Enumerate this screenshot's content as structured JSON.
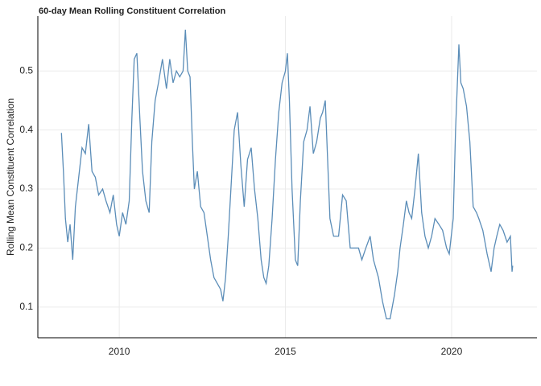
{
  "chart_data": {
    "type": "line",
    "title": "60-day Mean Rolling Constituent Correlation",
    "y_label": "Rolling Mean Constituent Correlation",
    "x": [
      2008.26,
      2008.32,
      2008.38,
      2008.45,
      2008.52,
      2008.6,
      2008.68,
      2008.78,
      2008.88,
      2008.98,
      2009.08,
      2009.18,
      2009.28,
      2009.38,
      2009.5,
      2009.6,
      2009.72,
      2009.82,
      2009.92,
      2010.0,
      2010.1,
      2010.2,
      2010.3,
      2010.38,
      2010.45,
      2010.53,
      2010.62,
      2010.7,
      2010.8,
      2010.9,
      2010.98,
      2011.08,
      2011.18,
      2011.3,
      2011.42,
      2011.52,
      2011.62,
      2011.72,
      2011.82,
      2011.92,
      2011.99,
      2012.06,
      2012.13,
      2012.2,
      2012.26,
      2012.35,
      2012.45,
      2012.55,
      2012.65,
      2012.75,
      2012.85,
      2012.95,
      2013.05,
      2013.12,
      2013.2,
      2013.28,
      2013.36,
      2013.46,
      2013.56,
      2013.66,
      2013.76,
      2013.86,
      2013.97,
      2014.07,
      2014.17,
      2014.27,
      2014.35,
      2014.42,
      2014.5,
      2014.6,
      2014.7,
      2014.8,
      2014.9,
      2015.0,
      2015.06,
      2015.12,
      2015.2,
      2015.3,
      2015.37,
      2015.45,
      2015.55,
      2015.65,
      2015.74,
      2015.84,
      2015.94,
      2016.05,
      2016.12,
      2016.2,
      2016.27,
      2016.34,
      2016.45,
      2016.6,
      2016.72,
      2016.83,
      2016.95,
      2017.07,
      2017.2,
      2017.3,
      2017.42,
      2017.55,
      2017.65,
      2017.8,
      2017.92,
      2018.04,
      2018.15,
      2018.28,
      2018.38,
      2018.45,
      2018.55,
      2018.64,
      2018.72,
      2018.8,
      2018.9,
      2019.0,
      2019.1,
      2019.2,
      2019.3,
      2019.4,
      2019.5,
      2019.62,
      2019.73,
      2019.85,
      2019.93,
      2020.05,
      2020.12,
      2020.22,
      2020.28,
      2020.35,
      2020.45,
      2020.55,
      2020.65,
      2020.75,
      2020.82,
      2020.94,
      2021.07,
      2021.19,
      2021.28,
      2021.36,
      2021.45,
      2021.55,
      2021.67,
      2021.77,
      2021.82,
      2021.84
    ],
    "series": [
      {
        "name": "Correlation",
        "color": "#5b8db8",
        "values": [
          0.395,
          0.33,
          0.25,
          0.21,
          0.24,
          0.18,
          0.27,
          0.32,
          0.37,
          0.36,
          0.41,
          0.33,
          0.32,
          0.29,
          0.3,
          0.28,
          0.26,
          0.29,
          0.24,
          0.22,
          0.26,
          0.24,
          0.28,
          0.42,
          0.52,
          0.53,
          0.42,
          0.33,
          0.28,
          0.26,
          0.38,
          0.45,
          0.48,
          0.52,
          0.47,
          0.52,
          0.48,
          0.5,
          0.49,
          0.5,
          0.57,
          0.5,
          0.49,
          0.38,
          0.3,
          0.33,
          0.27,
          0.26,
          0.22,
          0.18,
          0.15,
          0.14,
          0.13,
          0.11,
          0.15,
          0.22,
          0.3,
          0.4,
          0.43,
          0.34,
          0.27,
          0.35,
          0.37,
          0.3,
          0.25,
          0.18,
          0.15,
          0.14,
          0.17,
          0.25,
          0.35,
          0.43,
          0.48,
          0.5,
          0.53,
          0.45,
          0.3,
          0.18,
          0.17,
          0.28,
          0.38,
          0.4,
          0.44,
          0.36,
          0.38,
          0.42,
          0.43,
          0.45,
          0.35,
          0.25,
          0.22,
          0.22,
          0.29,
          0.28,
          0.2,
          0.2,
          0.2,
          0.18,
          0.2,
          0.22,
          0.18,
          0.15,
          0.11,
          0.08,
          0.08,
          0.12,
          0.16,
          0.2,
          0.24,
          0.28,
          0.26,
          0.25,
          0.3,
          0.36,
          0.26,
          0.22,
          0.2,
          0.22,
          0.25,
          0.24,
          0.23,
          0.2,
          0.19,
          0.25,
          0.4,
          0.545,
          0.48,
          0.47,
          0.44,
          0.38,
          0.27,
          0.26,
          0.25,
          0.23,
          0.19,
          0.16,
          0.2,
          0.22,
          0.24,
          0.23,
          0.21,
          0.22,
          0.16,
          0.17
        ]
      }
    ],
    "xlim": [
      2007.55,
      2022.57
    ],
    "xticks": [
      2010,
      2015,
      2020
    ],
    "ylim": [
      0.048,
      0.593
    ],
    "yticks": [
      0.1,
      0.2,
      0.3,
      0.4,
      0.5
    ],
    "grid": true
  }
}
